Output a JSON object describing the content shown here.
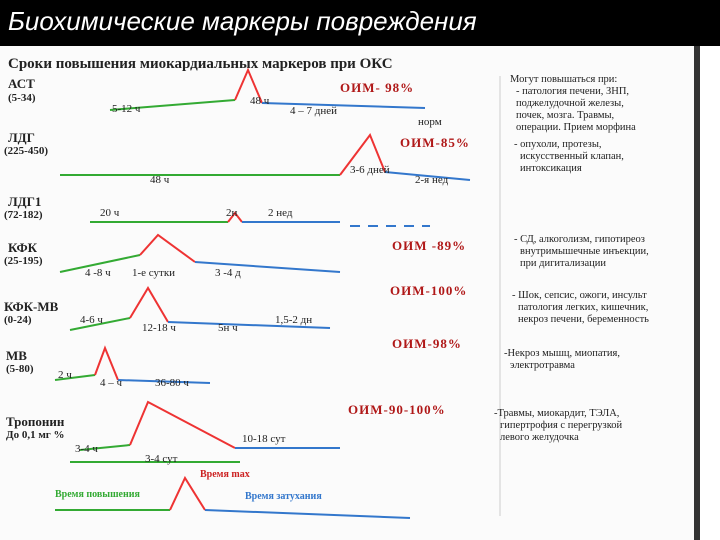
{
  "header": {
    "title": "Биохимические маркеры повреждения"
  },
  "heading": "Сроки повышения миокардиальных маркеров при ОКС",
  "rows": [
    {
      "name": "АСТ",
      "range": "(5-34)",
      "labels": [
        "5-12 ч",
        "48 ч",
        "4 – 7 дней",
        "норм"
      ],
      "oim": "ОИМ- 98%",
      "note": [
        "Могут повышаться при:",
        "- патология печени, ЗНП,",
        "поджелудочной железы,",
        "почек, мозга. Травмы,",
        "операции. Прием морфина"
      ]
    },
    {
      "name": "ЛДГ",
      "range": "(225-450)",
      "labels": [
        "48 ч",
        "3-6 дней",
        "2-я нед"
      ],
      "oim": "ОИМ-85%",
      "note": [
        "- опухоли, протезы,",
        "искусственный клапан,",
        "интоксикация"
      ]
    },
    {
      "name": "ЛДГ1",
      "range": "(72-182)",
      "labels": [
        "20 ч",
        "2н",
        "2 нед"
      ]
    },
    {
      "name": "КФК",
      "range": "(25-195)",
      "labels": [
        "4 -8 ч",
        "1-е сутки",
        "3 -4 д"
      ],
      "oim": "ОИМ -89%",
      "note": [
        "- СД, алкоголизм, гипотиреоз",
        "внутримышечные инъекции,",
        "при дигитализации"
      ]
    },
    {
      "name": "КФК-МВ",
      "range": "(0-24)",
      "labels": [
        "4-6 ч",
        "12-18 ч",
        "5н ч",
        "1,5-2 дн"
      ],
      "oim": "ОИМ-100%",
      "note": [
        "- Шок, сепсис, ожоги, инсульт",
        "патология легких, кишечник,",
        "некроз печени, беременность"
      ]
    },
    {
      "name": "МВ",
      "range": "(5-80)",
      "labels": [
        "2 ч",
        "4 – ч",
        "36-80 ч"
      ],
      "oim": "ОИМ-98%",
      "note": [
        "-Некроз мышц, миопатия,",
        "электротравма"
      ]
    },
    {
      "name": "Тропонин",
      "range": "До 0,1 мг %",
      "labels": [
        "3-4 ч",
        "3-4 сут",
        "10-18 сут"
      ],
      "oim": "ОИМ-90-100%",
      "note": [
        "-Травмы, миокардит, ТЭЛА,",
        "гипертрофия с перегрузкой",
        "левого желудочка"
      ]
    }
  ],
  "legend": {
    "rise": "Время повышения",
    "max": "Время max",
    "decay": "Время затухания"
  }
}
